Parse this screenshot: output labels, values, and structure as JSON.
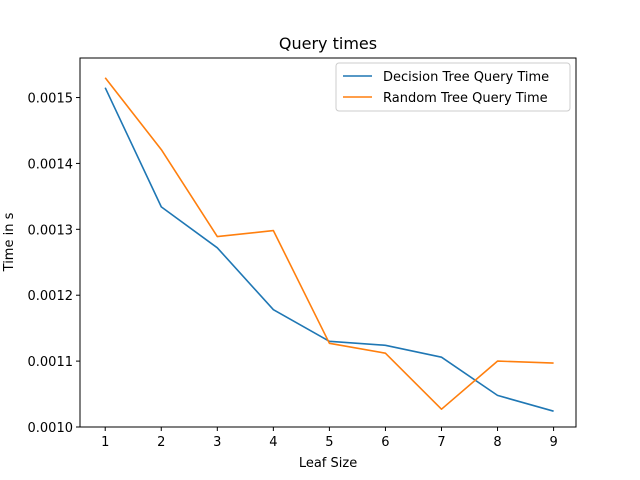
{
  "chart_data": {
    "type": "line",
    "title": "Query times",
    "xlabel": "Leaf Size",
    "ylabel": "Time in s",
    "x": [
      1,
      2,
      3,
      4,
      5,
      6,
      7,
      8,
      9
    ],
    "xlim": [
      0.55,
      9.4
    ],
    "ylim": [
      0.001,
      0.00156
    ],
    "xticks": [
      "1",
      "2",
      "3",
      "4",
      "5",
      "6",
      "7",
      "8",
      "9"
    ],
    "yticks": [
      "0.0010",
      "0.0011",
      "0.0012",
      "0.0013",
      "0.0014",
      "0.0015"
    ],
    "ytick_values": [
      0.001,
      0.0011,
      0.0012,
      0.0013,
      0.0014,
      0.0015
    ],
    "grid": false,
    "legend_position": "top-right",
    "series": [
      {
        "name": "Decision Tree Query Time",
        "color": "#1f77b4",
        "values": [
          0.001515,
          0.001334,
          0.001272,
          0.001178,
          0.00113,
          0.001124,
          0.001106,
          0.001048,
          0.001024
        ]
      },
      {
        "name": "Random Tree Query Time",
        "color": "#ff7f0e",
        "values": [
          0.00153,
          0.001421,
          0.001289,
          0.001298,
          0.001127,
          0.001112,
          0.001027,
          0.0011,
          0.001097
        ]
      }
    ]
  }
}
